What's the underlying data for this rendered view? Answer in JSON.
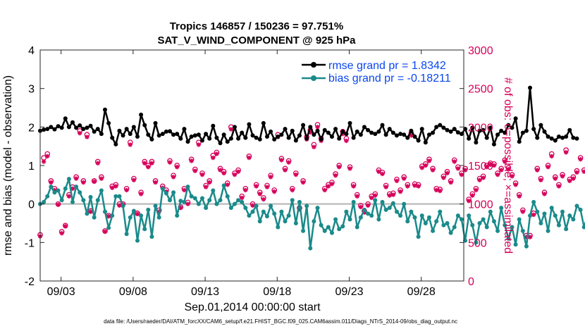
{
  "chart_data": {
    "type": "line",
    "title": "Tropics 146857 / 150236 = 97.751%",
    "subtitle": "SAT_V_WIND_COMPONENT @ 925 hPa",
    "xlabel": "Sep.01,2014 00:00:00 start",
    "ylabel_left": "rmse and bias (model - observation)",
    "ylabel_right": "# of obs: o=possible; ×=assimilated",
    "footer": "data file: /Users/raeder/DAI/ATM_forcXX/CAM6_setup/f.e21.FHIST_BGC.f09_025.CAM6assim.011/Diags_NTrS_2014-09/obs_diag_output.nc",
    "x_range_days": [
      1.55,
      30.95
    ],
    "ylim_left": [
      -2,
      4
    ],
    "ylim_right": [
      0,
      3000
    ],
    "x_ticks": [
      {
        "day": 3,
        "label": "09/03"
      },
      {
        "day": 8,
        "label": "09/08"
      },
      {
        "day": 13,
        "label": "09/13"
      },
      {
        "day": 18,
        "label": "09/18"
      },
      {
        "day": 23,
        "label": "09/23"
      },
      {
        "day": 28,
        "label": "09/28"
      }
    ],
    "y_ticks_left": [
      "4",
      "3",
      "2",
      "1",
      "0",
      "-1",
      "-2"
    ],
    "y_ticks_right": [
      "3000",
      "2500",
      "2000",
      "1500",
      "1000",
      "500",
      "0"
    ],
    "series": [
      {
        "name": "rmse",
        "legend": "rmse grand pr = 1.8342",
        "color": "#000000",
        "x_start_day": 1.55,
        "x_step_days": 0.25,
        "values": [
          1.9,
          1.93,
          1.95,
          2.0,
          1.94,
          2.02,
          1.98,
          2.22,
          2.0,
          2.12,
          1.98,
          2.04,
          1.95,
          1.98,
          2.03,
          1.88,
          1.95,
          1.82,
          2.45,
          2.1,
          1.72,
          1.55,
          1.9,
          1.78,
          1.95,
          1.82,
          2.0,
          1.75,
          2.32,
          2.05,
          1.8,
          1.68,
          2.1,
          1.78,
          1.82,
          1.88,
          1.89,
          1.8,
          1.82,
          1.7,
          1.95,
          1.62,
          1.75,
          1.78,
          1.8,
          1.65,
          1.82,
          1.7,
          2.03,
          1.72,
          1.58,
          1.8,
          1.62,
          1.7,
          2.0,
          1.7,
          1.85,
          1.72,
          2.07,
          1.78,
          1.72,
          1.68,
          2.1,
          1.75,
          1.88,
          1.68,
          1.75,
          1.8,
          1.95,
          1.72,
          1.9,
          1.65,
          1.78,
          2.05,
          1.7,
          2.0,
          1.8,
          1.9,
          1.68,
          1.92,
          1.85,
          1.75,
          1.95,
          1.7,
          1.88,
          1.82,
          2.1,
          1.72,
          1.88,
          1.8,
          2.0,
          1.92,
          1.85,
          1.82,
          1.88,
          2.05,
          1.8,
          1.95,
          1.85,
          1.78,
          1.82,
          1.8,
          1.72,
          1.9,
          1.75,
          1.65,
          1.95,
          1.6,
          1.8,
          1.85,
          2.0,
          2.05,
          1.98,
          1.92,
          1.88,
          1.95,
          1.86,
          1.82,
          1.95,
          1.7,
          1.98,
          1.6,
          1.9,
          1.92,
          1.72,
          1.98,
          1.55,
          1.8,
          1.9,
          1.85,
          2.05,
          1.98,
          2.22,
          1.62,
          1.85,
          1.9,
          3.02,
          1.95,
          1.72,
          2.05,
          1.88,
          1.75,
          1.7,
          1.65,
          1.75,
          1.72,
          1.75,
          1.92,
          1.72,
          1.7
        ]
      },
      {
        "name": "bias",
        "legend": "bias grand pr = -0.18211",
        "color": "#1a8a8a",
        "x_start_day": 1.55,
        "x_step_days": 0.25,
        "values": [
          0.0,
          0.05,
          0.2,
          0.45,
          0.3,
          0.35,
          0.1,
          0.4,
          0.65,
          0.05,
          0.45,
          0.3,
          0.1,
          -0.25,
          0.18,
          -0.35,
          0.1,
          0.35,
          -0.2,
          -0.62,
          -0.3,
          0.2,
          0.2,
          -0.05,
          -0.78,
          -0.35,
          -0.18,
          -0.95,
          -0.3,
          -0.65,
          -0.15,
          -0.85,
          -0.05,
          -0.35,
          0.4,
          0.28,
          0.1,
          0.3,
          -0.3,
          0.08,
          0.05,
          0.45,
          0.2,
          0.15,
          0.0,
          0.15,
          -0.1,
          0.1,
          0.35,
          0.0,
          0.1,
          0.48,
          0.2,
          -0.1,
          0.0,
          0.1,
          0.05,
          -0.1,
          -0.3,
          -0.2,
          -0.05,
          -0.45,
          -0.2,
          -0.32,
          -0.05,
          -0.25,
          -0.6,
          -0.2,
          -0.45,
          -0.3,
          0.1,
          -0.5,
          0.05,
          -0.7,
          -0.05,
          -1.15,
          -0.45,
          -0.1,
          -0.55,
          -0.7,
          -0.6,
          -0.75,
          -0.4,
          -0.65,
          -0.58,
          -0.2,
          -0.4,
          0.05,
          -0.6,
          -0.35,
          -0.15,
          -0.25,
          -0.3,
          0.1,
          -0.4,
          0.05,
          -0.15,
          -0.1,
          0.02,
          -0.2,
          -0.3,
          0.0,
          -0.45,
          -0.2,
          -0.35,
          -0.85,
          -0.3,
          -0.5,
          -0.35,
          -0.7,
          -0.45,
          -0.2,
          -0.55,
          -0.5,
          -0.75,
          -0.6,
          -0.3,
          -0.4,
          -0.95,
          -0.3,
          -0.55,
          -1.0,
          -0.5,
          -0.4,
          -0.6,
          -0.2,
          -0.45,
          -0.7,
          -0.1,
          -0.55,
          -0.9,
          -0.6,
          -1.05,
          -0.4,
          -0.7,
          -1.1,
          -0.3,
          0.05,
          -0.2,
          -0.5,
          -0.25,
          -0.7,
          -0.1,
          -0.3,
          -0.55,
          -0.2,
          -0.65,
          -0.3,
          -0.4,
          -0.05,
          -0.15,
          -0.6,
          -0.3,
          -0.1
        ]
      },
      {
        "name": "obs_possible",
        "marker": "o",
        "color": "#d6005a",
        "axis": "right",
        "x_start_day": 1.55,
        "x_step_days": 0.25,
        "values": [
          600,
          1600,
          1650,
          1300,
          1200,
          1000,
          640,
          720,
          1120,
          1220,
          1350,
          1950,
          1300,
          1900,
          910,
          1300,
          1550,
          1350,
          650,
          850,
          1230,
          1250,
          1000,
          1000,
          1200,
          1800,
          1330,
          880,
          1150,
          1550,
          1500,
          1550,
          1300,
          920,
          1230,
          1180,
          1560,
          1370,
          1500,
          960,
          1200,
          1020,
          1580,
          1450,
          1800,
          1400,
          1240,
          1300,
          1630,
          1670,
          1460,
          1420,
          1270,
          2000,
          1400,
          1440,
          1100,
          1200,
          1620,
          1000,
          1250,
          1150,
          1080,
          1240,
          1370,
          1180,
          1900,
          1590,
          1460,
          1560,
          1200,
          1400,
          950,
          1300,
          1870,
          1960,
          1770,
          2030,
          1850,
          1200,
          1250,
          1280,
          1390,
          1500,
          1940,
          1850,
          1480,
          1250,
          1120,
          980,
          910,
          1000,
          1100,
          1130,
          1440,
          1410,
          1240,
          1130,
          1140,
          1320,
          1180,
          1350,
          1250,
          1920,
          1260,
          1250,
          1490,
          1520,
          1580,
          1460,
          1200,
          1190,
          1360,
          1420,
          1300,
          1570,
          1480,
          1400,
          1460,
          1060,
          1130,
          1200,
          1330,
          1360,
          1500,
          1530,
          1520,
          1400,
          1460,
          1570,
          1470,
          1380,
          1270,
          1120,
          920,
          590,
          590,
          880,
          1460,
          1330,
          1150,
          1500,
          1650,
          1350,
          1250,
          1380,
          1700,
          1320,
          1350,
          1430,
          1600,
          1440,
          1450
        ]
      },
      {
        "name": "obs_assimilated",
        "marker": "x",
        "color": "#d6005a",
        "axis": "right",
        "x_start_day": 1.55,
        "x_step_days": 0.25,
        "values": [
          580,
          1550,
          1620,
          1280,
          1180,
          990,
          620,
          710,
          1100,
          1200,
          1330,
          1920,
          1280,
          1870,
          900,
          1290,
          1530,
          1330,
          640,
          840,
          1210,
          1230,
          980,
          990,
          1180,
          1770,
          1310,
          870,
          1130,
          1530,
          1480,
          1530,
          1280,
          900,
          1210,
          1160,
          1540,
          1350,
          1480,
          950,
          1180,
          1000,
          1560,
          1430,
          1770,
          1380,
          1220,
          1280,
          1600,
          1650,
          1440,
          1400,
          1250,
          1970,
          1380,
          1420,
          1080,
          1180,
          1600,
          980,
          1230,
          1130,
          1060,
          1220,
          1350,
          1160,
          1870,
          1570,
          1440,
          1540,
          1180,
          1380,
          930,
          1280,
          1840,
          1930,
          1740,
          2000,
          1820,
          1180,
          1230,
          1260,
          1370,
          1480,
          1910,
          1820,
          1460,
          1230,
          1100,
          960,
          890,
          980,
          1080,
          1110,
          1420,
          1390,
          1220,
          1110,
          1120,
          1300,
          1160,
          1330,
          1230,
          1890,
          1240,
          1230,
          1470,
          1500,
          1560,
          1440,
          1180,
          1170,
          1340,
          1400,
          1280,
          1550,
          1460,
          1380,
          1440,
          1040,
          1110,
          1180,
          1310,
          1340,
          1480,
          1510,
          1500,
          1380,
          1440,
          1550,
          1450,
          1360,
          1250,
          1100,
          900,
          570,
          570,
          860,
          1440,
          1310,
          1130,
          1480,
          1620,
          1330,
          1230,
          1360,
          1670,
          1300,
          1330,
          1410,
          1580,
          1420,
          1430
        ]
      }
    ],
    "reference_line": {
      "value": 0,
      "color": "#b3b3b3"
    },
    "grid": false,
    "legend_position": "top-right"
  },
  "colors": {
    "rmse": "#000000",
    "bias": "#1a8a8a",
    "obs": "#d6005a",
    "zero_line": "#b3b3b3",
    "legend_text": "#0a46f0"
  }
}
